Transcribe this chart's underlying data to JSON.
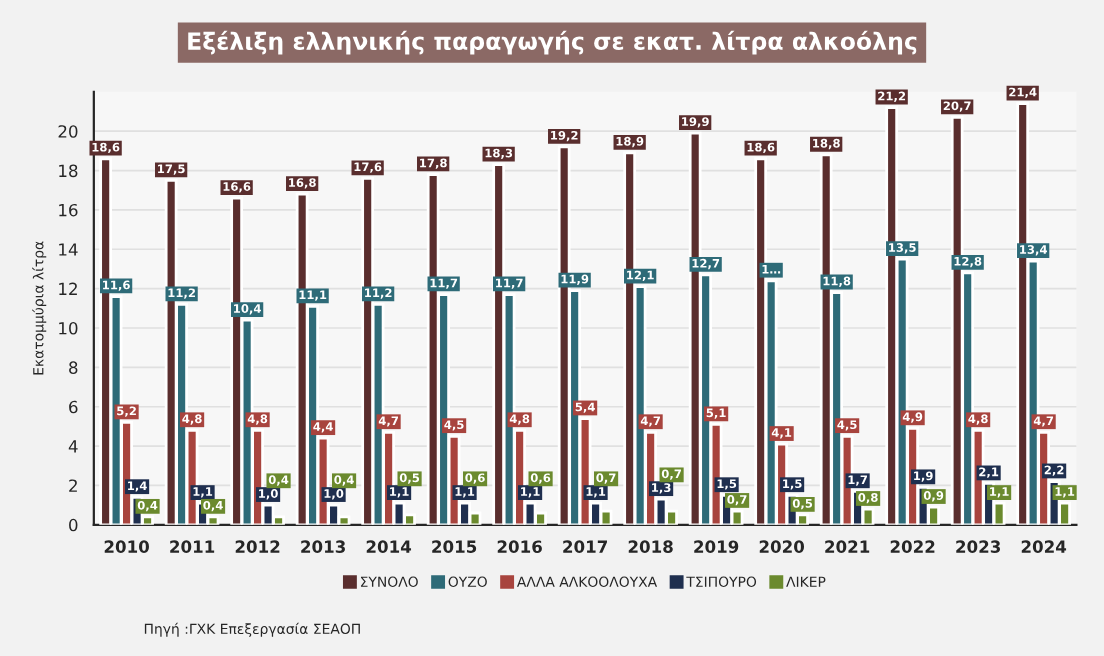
{
  "chart_data": {
    "type": "bar",
    "title": "Εξέλιξη ελληνικής παραγωγής σε εκατ. λίτρα αλκοόλης",
    "ylabel": "Εκατομμύρια λίτρα",
    "categories": [
      "2010",
      "2011",
      "2012",
      "2013",
      "2014",
      "2015",
      "2016",
      "2017",
      "2018",
      "2019",
      "2020",
      "2021",
      "2022",
      "2023",
      "2024"
    ],
    "series": [
      {
        "name": "ΣΥΝΟΛΟ",
        "color": "#5a2e2e",
        "values": [
          18.6,
          17.5,
          16.6,
          16.8,
          17.6,
          17.8,
          18.3,
          19.2,
          18.9,
          19.9,
          18.6,
          18.8,
          21.2,
          20.7,
          21.4
        ],
        "value_labels": [
          "18,6",
          "17,5",
          "16,6",
          "16,8",
          "17,6",
          "17,8",
          "18,3",
          "19,2",
          "18,9",
          "19,9",
          "18,6",
          "18,8",
          "21,2",
          "20,7",
          "21,4"
        ]
      },
      {
        "name": "ΟΥΖΟ",
        "color": "#2e6b78",
        "values": [
          11.6,
          11.2,
          10.4,
          11.1,
          11.2,
          11.7,
          11.7,
          11.9,
          12.1,
          12.7,
          12.4,
          11.8,
          13.5,
          12.8,
          13.4
        ],
        "value_labels": [
          "11,6",
          "11,2",
          "10,4",
          "11,1",
          "11,2",
          "11,7",
          "11,7",
          "11,9",
          "12,1",
          "12,7",
          "1…",
          "11,8",
          "13,5",
          "12,8",
          "13,4"
        ]
      },
      {
        "name": "ΑΛΛΑ ΑΛΚΟΟΛΟΥΧΑ",
        "color": "#a8443e",
        "values": [
          5.2,
          4.8,
          4.8,
          4.4,
          4.7,
          4.5,
          4.8,
          5.4,
          4.7,
          5.1,
          4.1,
          4.5,
          4.9,
          4.8,
          4.7
        ],
        "value_labels": [
          "5,2",
          "4,8",
          "4,8",
          "4,4",
          "4,7",
          "4,5",
          "4,8",
          "5,4",
          "4,7",
          "5,1",
          "4,1",
          "4,5",
          "4,9",
          "4,8",
          "4,7"
        ]
      },
      {
        "name": "ΤΣΙΠΟΥΡΟ",
        "color": "#1f2f4f",
        "values": [
          1.4,
          1.1,
          1.0,
          1.0,
          1.1,
          1.1,
          1.1,
          1.1,
          1.3,
          1.5,
          1.5,
          1.7,
          1.9,
          2.1,
          2.2
        ],
        "value_labels": [
          "1,4",
          "1,1",
          "1,0",
          "1,0",
          "1,1",
          "1,1",
          "1,1",
          "1,1",
          "1,3",
          "1,5",
          "1,5",
          "1,7",
          "1,9",
          "2,1",
          "2,2"
        ]
      },
      {
        "name": "ΛΙΚΕΡ",
        "color": "#6b8a2e",
        "values": [
          0.4,
          0.4,
          0.4,
          0.4,
          0.5,
          0.6,
          0.6,
          0.7,
          0.7,
          0.7,
          0.5,
          0.8,
          0.9,
          1.1,
          1.1
        ],
        "value_labels": [
          "0,4",
          "0,4",
          "0,4",
          "0,4",
          "0,5",
          "0,6",
          "0,6",
          "0,7",
          "0,7",
          "0,7",
          "0,5",
          "0,8",
          "0,9",
          "1,1",
          "1,1"
        ]
      }
    ],
    "ylim": [
      0,
      22
    ],
    "yticks": [
      0,
      2,
      4,
      6,
      8,
      10,
      12,
      14,
      16,
      18,
      20
    ],
    "grid": "y",
    "legend": "bottom",
    "annotations": [
      "Πηγή :ΓΧΚ Επεξεργασία ΣΕΑΟΠ"
    ]
  }
}
